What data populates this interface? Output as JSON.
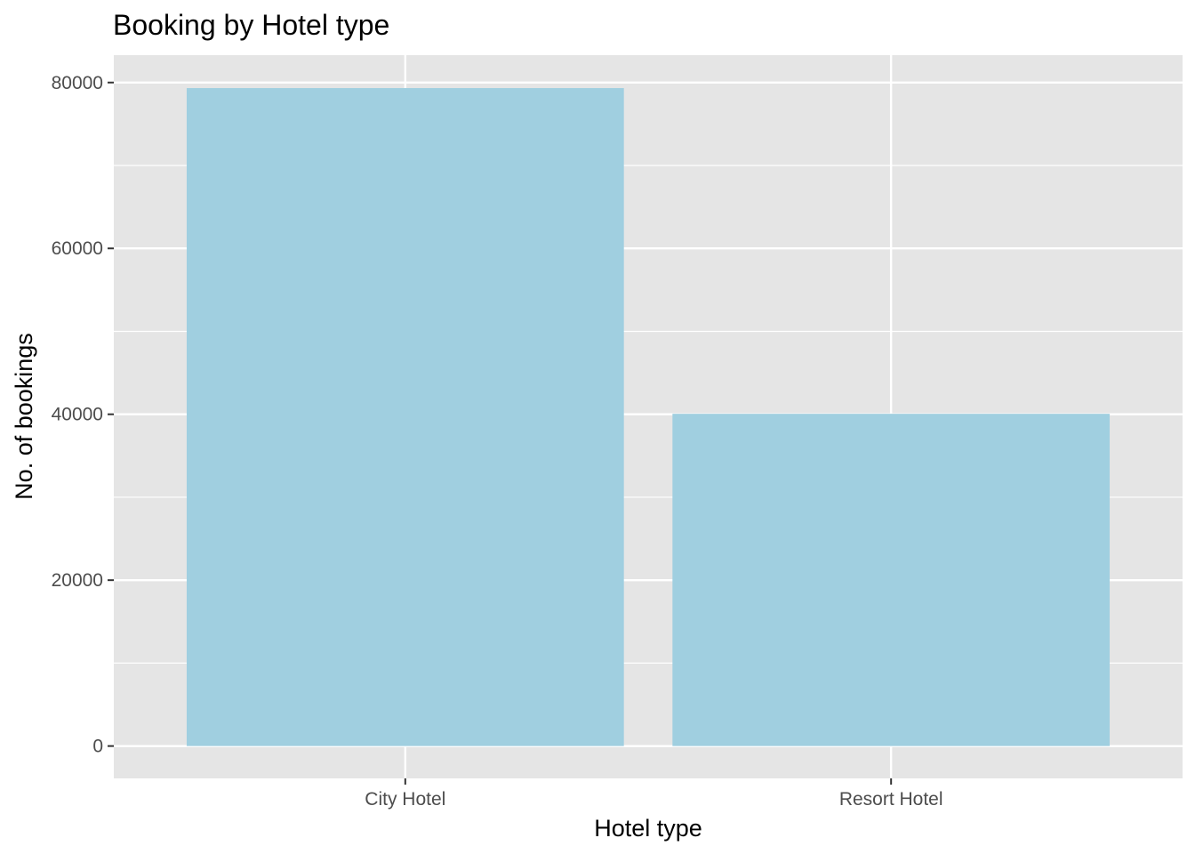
{
  "colors": {
    "panel_background": "#e5e5e5",
    "grid_line": "#ffffff",
    "bar_fill": "#a0cfe0",
    "tick_mark": "#333333",
    "tick_label": "#4d4d4d",
    "text": "#000000"
  },
  "chart_data": {
    "type": "bar",
    "title": "Booking by Hotel type",
    "xlabel": "Hotel type",
    "ylabel": "No. of bookings",
    "categories": [
      "City Hotel",
      "Resort Hotel"
    ],
    "values": [
      79330,
      40060
    ],
    "ylim": [
      -3900,
      83300
    ],
    "yticks": [
      0,
      20000,
      40000,
      60000,
      80000
    ],
    "ytick_labels": [
      "0",
      "20000",
      "40000",
      "60000",
      "80000"
    ],
    "grid": true,
    "legend": "none"
  }
}
